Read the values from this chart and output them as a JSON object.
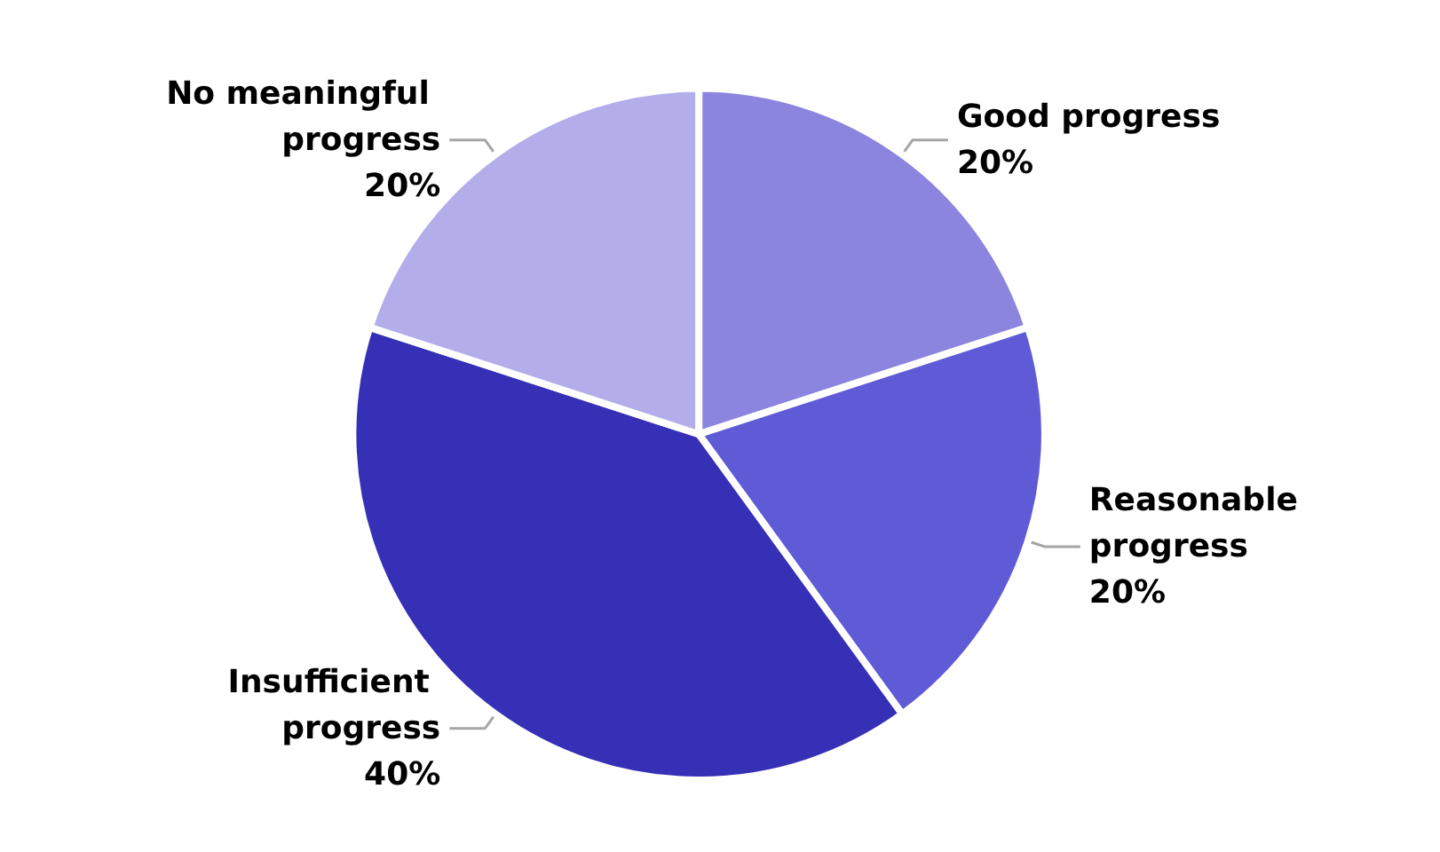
{
  "chart_data": {
    "type": "pie",
    "categories": [
      "Good progress",
      "Reasonable progress",
      "Insufficient progress",
      "No meaningful progress"
    ],
    "values": [
      20,
      20,
      40,
      20
    ],
    "colors": [
      "#8b85e0",
      "#5f5ad6",
      "#3530b6",
      "#b3aeea"
    ],
    "value_labels": [
      "20%",
      "20%",
      "40%",
      "20%"
    ],
    "legend": false
  }
}
